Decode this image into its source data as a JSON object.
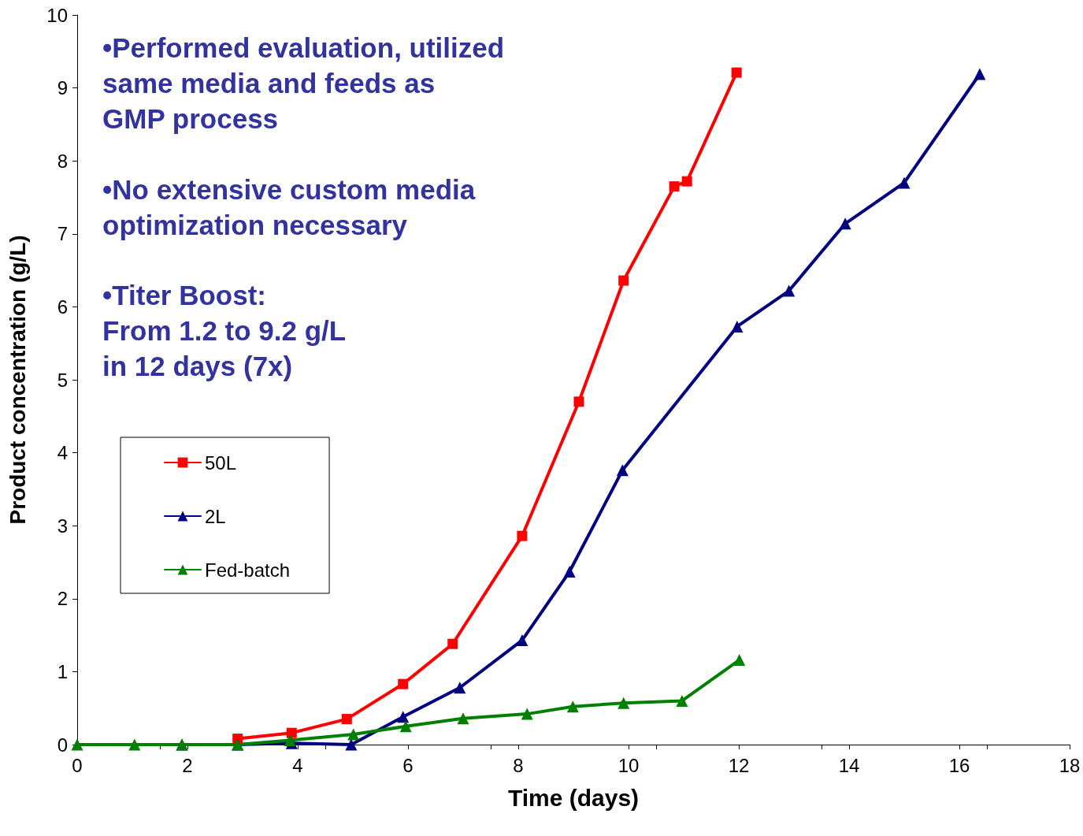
{
  "chart_data": {
    "type": "line",
    "xlabel": "Time (days)",
    "ylabel": "Product concentration (g/L)",
    "xlim": [
      0,
      18
    ],
    "xticks": [
      0,
      2,
      4,
      6,
      8,
      10,
      12,
      14,
      16,
      18
    ],
    "ylim": [
      0,
      10
    ],
    "yticks": [
      0,
      1,
      2,
      3,
      4,
      5,
      6,
      7,
      8,
      9,
      10
    ],
    "grid": false,
    "legend": "left",
    "line_style": "solid",
    "annotations": [
      "•Performed evaluation, utilized\nsame media and feeds as\nGMP process",
      "•No extensive custom media\noptimization necessary",
      "•Titer Boost:\nFrom 1.2 to 9.2 g/L\nin 12 days (7x)"
    ],
    "series": [
      {
        "name": "50L",
        "color": "#ff0000",
        "marker": "square",
        "x": [
          2.91,
          3.89,
          4.89,
          5.91,
          6.81,
          8.07,
          9.1,
          9.91,
          10.83,
          11.06,
          11.96
        ],
        "values": [
          0.08,
          0.16,
          0.35,
          0.83,
          1.38,
          2.86,
          4.7,
          6.36,
          7.65,
          7.72,
          9.21
        ]
      },
      {
        "name": "2L",
        "color": "#000080",
        "marker": "triangle",
        "x": [
          1.9,
          2.91,
          3.89,
          4.97,
          5.91,
          6.94,
          8.07,
          8.93,
          9.89,
          11.97,
          12.91,
          13.93,
          15.0,
          16.37
        ],
        "values": [
          0,
          0,
          0.02,
          0,
          0.38,
          0.78,
          1.43,
          2.37,
          3.76,
          5.73,
          6.22,
          7.14,
          7.7,
          9.19
        ]
      },
      {
        "name": "Fed-batch",
        "color": "#008000",
        "marker": "triangle",
        "x": [
          0,
          1.04,
          1.9,
          2.91,
          3.86,
          5.01,
          5.96,
          7.0,
          8.16,
          8.99,
          9.91,
          10.97,
          12.01
        ],
        "values": [
          0,
          0,
          0,
          0,
          0.06,
          0.14,
          0.25,
          0.36,
          0.42,
          0.52,
          0.57,
          0.6,
          1.16
        ]
      }
    ]
  }
}
